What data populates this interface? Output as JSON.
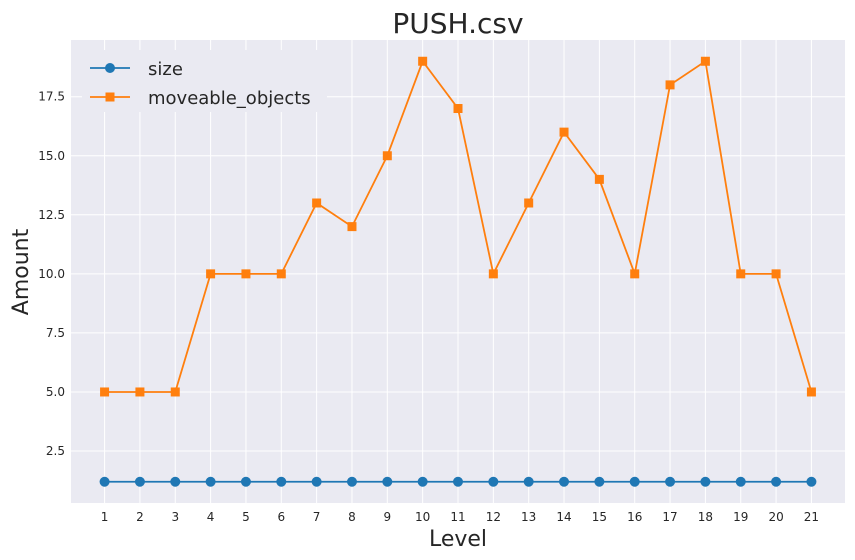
{
  "chart_data": {
    "type": "line",
    "title": "PUSH.csv",
    "xlabel": "Level",
    "ylabel": "Amount",
    "x": [
      1,
      2,
      3,
      4,
      5,
      6,
      7,
      8,
      9,
      10,
      11,
      12,
      13,
      14,
      15,
      16,
      17,
      18,
      19,
      20,
      21
    ],
    "xticks": [
      "1",
      "2",
      "3",
      "4",
      "5",
      "6",
      "7",
      "8",
      "9",
      "10",
      "11",
      "12",
      "13",
      "14",
      "15",
      "16",
      "17",
      "18",
      "19",
      "20",
      "21"
    ],
    "yticks": [
      "2.5",
      "5.0",
      "7.5",
      "10.0",
      "12.5",
      "15.0",
      "17.5"
    ],
    "ylim": [
      0.3,
      19.9
    ],
    "xlim": [
      0.05,
      21.95
    ],
    "grid": true,
    "legend_position": "top-left",
    "series": [
      {
        "name": "size",
        "color": "#1f77b4",
        "marker": "circle",
        "values": [
          1.2,
          1.2,
          1.2,
          1.2,
          1.2,
          1.2,
          1.2,
          1.2,
          1.2,
          1.2,
          1.2,
          1.2,
          1.2,
          1.2,
          1.2,
          1.2,
          1.2,
          1.2,
          1.2,
          1.2,
          1.2
        ]
      },
      {
        "name": "moveable_objects",
        "color": "#ff7f0e",
        "marker": "square",
        "values": [
          5,
          5,
          5,
          10,
          10,
          10,
          13,
          12,
          15,
          19,
          17,
          10,
          13,
          16,
          14,
          10,
          18,
          19,
          10,
          10,
          5
        ]
      }
    ]
  }
}
